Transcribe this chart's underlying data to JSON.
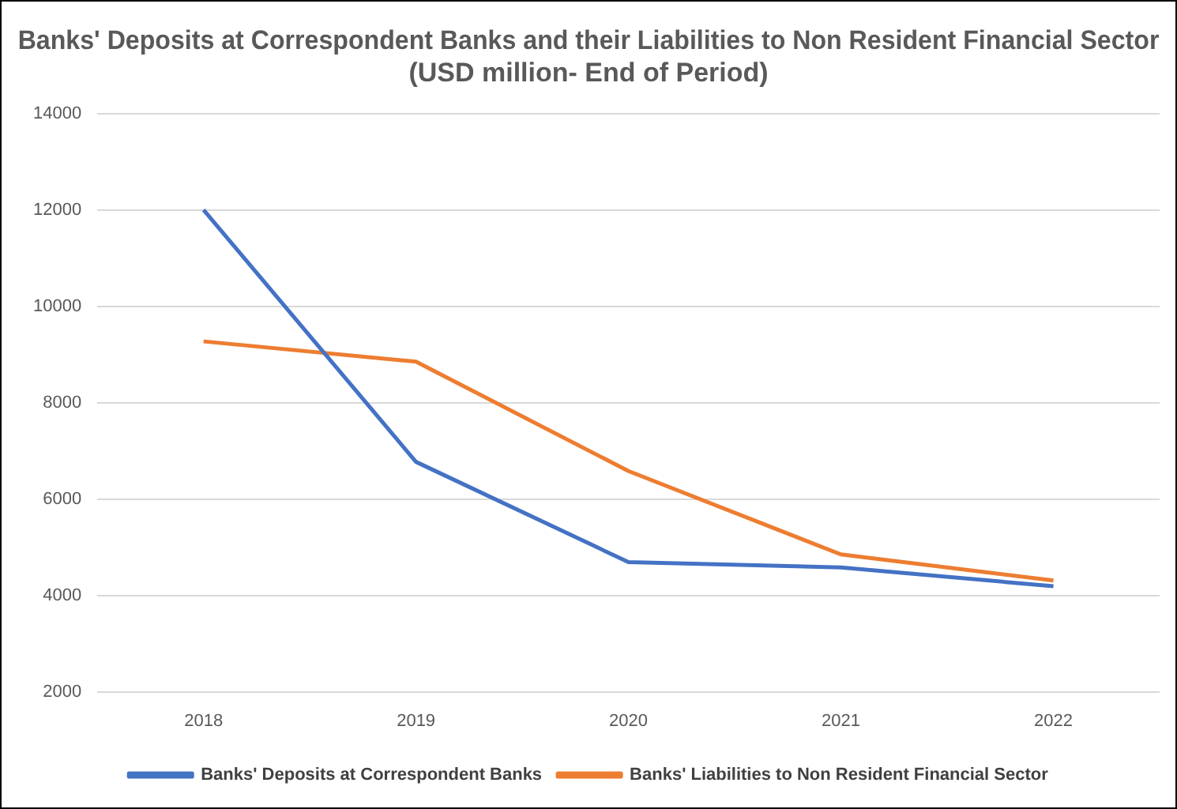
{
  "chart_data": {
    "type": "line",
    "title": "Banks' Deposits at Correspondent Banks and their Liabilities to Non Resident Financial Sector\n(USD million- End of Period)",
    "categories": [
      "2018",
      "2019",
      "2020",
      "2021",
      "2022"
    ],
    "series": [
      {
        "name": "Banks' Deposits at Correspondent Banks",
        "color": "#4472c4",
        "values": [
          12000,
          6770,
          4690,
          4580,
          4190
        ]
      },
      {
        "name": "Banks' Liabilities to Non Resident Financial Sector",
        "color": "#ed7d31",
        "values": [
          9270,
          8850,
          6580,
          4850,
          4310
        ]
      }
    ],
    "ylim": [
      2000,
      14000
    ],
    "yticks": [
      2000,
      4000,
      6000,
      8000,
      10000,
      12000,
      14000
    ],
    "grid": "y",
    "legend": "bottom",
    "marker": "none",
    "line_style": "solid"
  }
}
